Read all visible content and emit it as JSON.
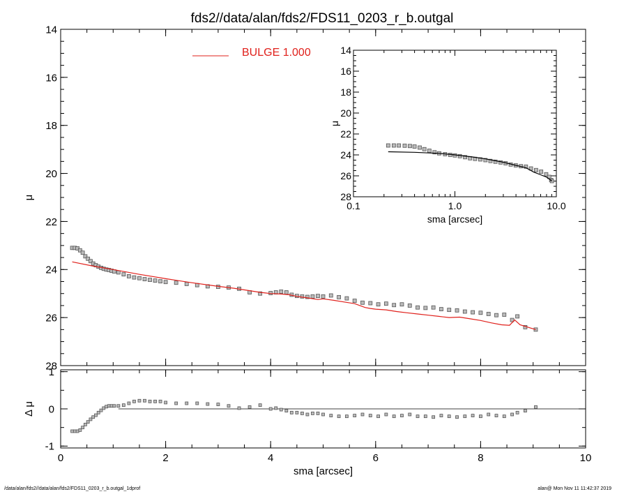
{
  "colors": {
    "model": "#e0201b",
    "data": "#555555",
    "axis": "#000000"
  },
  "chart_data": [
    {
      "id": "main",
      "type": "scatter",
      "title": "fds2//data/alan/fds2/FDS11_0203_r_b.outgal",
      "xlabel": "sma [arcsec]",
      "ylabel": "μ",
      "xlim": [
        0,
        10
      ],
      "ylim": [
        28,
        14
      ],
      "y_inverted": true,
      "x_ticks": [
        0,
        2,
        4,
        6,
        8,
        10
      ],
      "y_ticks": [
        14,
        16,
        18,
        20,
        22,
        24,
        26,
        28
      ],
      "legend": {
        "label": "BULGE  1.000",
        "placement": "top-left"
      },
      "series": [
        {
          "name": "data",
          "style": "squares",
          "x": [
            0.22,
            0.27,
            0.32,
            0.37,
            0.42,
            0.47,
            0.52,
            0.57,
            0.62,
            0.67,
            0.72,
            0.77,
            0.82,
            0.87,
            0.92,
            0.97,
            1.02,
            1.1,
            1.2,
            1.3,
            1.4,
            1.5,
            1.6,
            1.7,
            1.8,
            1.9,
            2.0,
            2.2,
            2.4,
            2.6,
            2.8,
            3.0,
            3.2,
            3.4,
            3.6,
            3.8,
            4.0,
            4.1,
            4.2,
            4.3,
            4.4,
            4.5,
            4.6,
            4.7,
            4.8,
            4.9,
            5.0,
            5.15,
            5.3,
            5.45,
            5.6,
            5.75,
            5.9,
            6.05,
            6.2,
            6.35,
            6.5,
            6.65,
            6.8,
            6.95,
            7.1,
            7.25,
            7.4,
            7.55,
            7.7,
            7.85,
            8.0,
            8.15,
            8.3,
            8.45,
            8.6,
            8.7,
            8.85,
            9.05
          ],
          "y": [
            23.1,
            23.1,
            23.12,
            23.2,
            23.3,
            23.45,
            23.55,
            23.65,
            23.75,
            23.82,
            23.88,
            23.93,
            23.97,
            24.0,
            24.02,
            24.05,
            24.08,
            24.12,
            24.2,
            24.28,
            24.33,
            24.36,
            24.4,
            24.43,
            24.46,
            24.49,
            24.52,
            24.55,
            24.6,
            24.65,
            24.7,
            24.72,
            24.75,
            24.8,
            24.95,
            25.0,
            24.98,
            24.95,
            24.92,
            24.95,
            25.05,
            25.1,
            25.12,
            25.14,
            25.12,
            25.1,
            25.12,
            25.08,
            25.15,
            25.2,
            25.3,
            25.38,
            25.4,
            25.45,
            25.42,
            25.48,
            25.45,
            25.5,
            25.58,
            25.6,
            25.58,
            25.65,
            25.68,
            25.7,
            25.75,
            25.78,
            25.8,
            25.85,
            25.9,
            25.88,
            26.1,
            25.95,
            26.4,
            26.5
          ]
        },
        {
          "name": "BULGE  1.000",
          "style": "line",
          "x": [
            0.22,
            0.6,
            1.0,
            1.5,
            2.0,
            2.5,
            3.0,
            3.3,
            3.6,
            3.8,
            4.0,
            4.2,
            4.35,
            4.5,
            4.7,
            4.9,
            5.0,
            5.2,
            5.4,
            5.6,
            5.8,
            5.9,
            6.0,
            6.2,
            6.4,
            6.6,
            6.8,
            7.0,
            7.2,
            7.4,
            7.6,
            7.8,
            8.0,
            8.2,
            8.4,
            8.55,
            8.65,
            8.75,
            8.9,
            9.05
          ],
          "y": [
            23.68,
            23.85,
            24.0,
            24.2,
            24.38,
            24.55,
            24.7,
            24.78,
            24.88,
            24.95,
            25.0,
            25.02,
            25.05,
            25.12,
            25.18,
            25.25,
            25.22,
            25.28,
            25.35,
            25.42,
            25.58,
            25.62,
            25.65,
            25.68,
            25.75,
            25.8,
            25.85,
            25.9,
            25.95,
            26.0,
            25.98,
            26.05,
            26.12,
            26.22,
            26.3,
            26.32,
            26.1,
            26.3,
            26.4,
            26.5
          ]
        }
      ]
    },
    {
      "id": "residual",
      "type": "scatter",
      "xlabel": "sma [arcsec]",
      "ylabel": "Δ μ",
      "xlim": [
        0,
        10
      ],
      "ylim": [
        -1.05,
        1.05
      ],
      "x_ticks": [
        0,
        2,
        4,
        6,
        8,
        10
      ],
      "y_ticks": [
        -1,
        0,
        1
      ],
      "reference_line": 0,
      "series": [
        {
          "name": "residual",
          "style": "squares",
          "x": [
            0.22,
            0.27,
            0.32,
            0.37,
            0.42,
            0.47,
            0.52,
            0.57,
            0.62,
            0.67,
            0.72,
            0.77,
            0.82,
            0.87,
            0.92,
            0.97,
            1.02,
            1.1,
            1.2,
            1.3,
            1.4,
            1.5,
            1.6,
            1.7,
            1.8,
            1.9,
            2.0,
            2.2,
            2.4,
            2.6,
            2.8,
            3.0,
            3.2,
            3.4,
            3.6,
            3.8,
            4.0,
            4.1,
            4.2,
            4.3,
            4.4,
            4.5,
            4.6,
            4.7,
            4.8,
            4.9,
            5.0,
            5.15,
            5.3,
            5.45,
            5.6,
            5.75,
            5.9,
            6.05,
            6.2,
            6.35,
            6.5,
            6.65,
            6.8,
            6.95,
            7.1,
            7.25,
            7.4,
            7.55,
            7.7,
            7.85,
            8.0,
            8.15,
            8.3,
            8.45,
            8.6,
            8.7,
            8.85,
            9.05
          ],
          "y": [
            -0.6,
            -0.6,
            -0.6,
            -0.57,
            -0.5,
            -0.42,
            -0.35,
            -0.28,
            -0.22,
            -0.17,
            -0.1,
            -0.04,
            0.02,
            0.06,
            0.08,
            0.08,
            0.08,
            0.08,
            0.1,
            0.15,
            0.2,
            0.22,
            0.22,
            0.2,
            0.2,
            0.2,
            0.17,
            0.15,
            0.15,
            0.15,
            0.13,
            0.12,
            0.08,
            0.02,
            0.05,
            0.1,
            0.0,
            0.02,
            -0.02,
            -0.05,
            -0.1,
            -0.1,
            -0.12,
            -0.15,
            -0.12,
            -0.12,
            -0.15,
            -0.18,
            -0.2,
            -0.2,
            -0.18,
            -0.15,
            -0.18,
            -0.2,
            -0.15,
            -0.2,
            -0.18,
            -0.15,
            -0.2,
            -0.2,
            -0.22,
            -0.18,
            -0.2,
            -0.22,
            -0.2,
            -0.18,
            -0.2,
            -0.15,
            -0.18,
            -0.2,
            -0.15,
            -0.1,
            -0.05,
            0.05
          ]
        }
      ]
    },
    {
      "id": "inset",
      "type": "line",
      "xlabel": "sma [arcsec]",
      "ylabel": "μ",
      "x_scale": "log",
      "xlim": [
        0.1,
        10
      ],
      "ylim": [
        28,
        14
      ],
      "y_inverted": true,
      "x_ticks": [
        0.1,
        1.0,
        10.0
      ],
      "x_tick_labels": [
        "0.1",
        "1.0",
        "10.0"
      ],
      "y_ticks": [
        14,
        16,
        18,
        20,
        22,
        24,
        26,
        28
      ],
      "series": [
        {
          "name": "data",
          "style": "squares",
          "x": [
            0.22,
            0.25,
            0.28,
            0.32,
            0.36,
            0.4,
            0.45,
            0.5,
            0.56,
            0.63,
            0.7,
            0.8,
            0.9,
            1.0,
            1.12,
            1.26,
            1.41,
            1.58,
            1.78,
            2.0,
            2.24,
            2.51,
            2.82,
            3.16,
            3.55,
            3.98,
            4.47,
            5.01,
            5.62,
            6.31,
            7.08,
            7.94,
            8.5,
            8.9,
            9.05
          ],
          "y": [
            23.1,
            23.1,
            23.1,
            23.12,
            23.15,
            23.2,
            23.3,
            23.45,
            23.6,
            23.75,
            23.85,
            23.93,
            24.0,
            24.05,
            24.12,
            24.22,
            24.32,
            24.38,
            24.43,
            24.5,
            24.58,
            24.65,
            24.72,
            24.8,
            24.92,
            25.0,
            25.08,
            25.12,
            25.3,
            25.45,
            25.6,
            25.85,
            26.1,
            26.4,
            26.5
          ]
        },
        {
          "name": "model",
          "style": "line",
          "x": [
            0.22,
            0.4,
            0.7,
            1.0,
            1.5,
            2.0,
            3.0,
            4.0,
            5.0,
            6.0,
            7.0,
            8.0,
            9.05
          ],
          "y": [
            23.7,
            23.75,
            23.85,
            24.0,
            24.2,
            24.38,
            24.7,
            25.0,
            25.22,
            25.65,
            25.9,
            26.12,
            26.5
          ]
        }
      ]
    }
  ],
  "footer": {
    "left": "/data/alan/fds2//data/alan/fds2/FDS11_0203_r_b.outgal_1dprof",
    "right": "alan@  Mon Nov 11 11:42:37 2019"
  }
}
